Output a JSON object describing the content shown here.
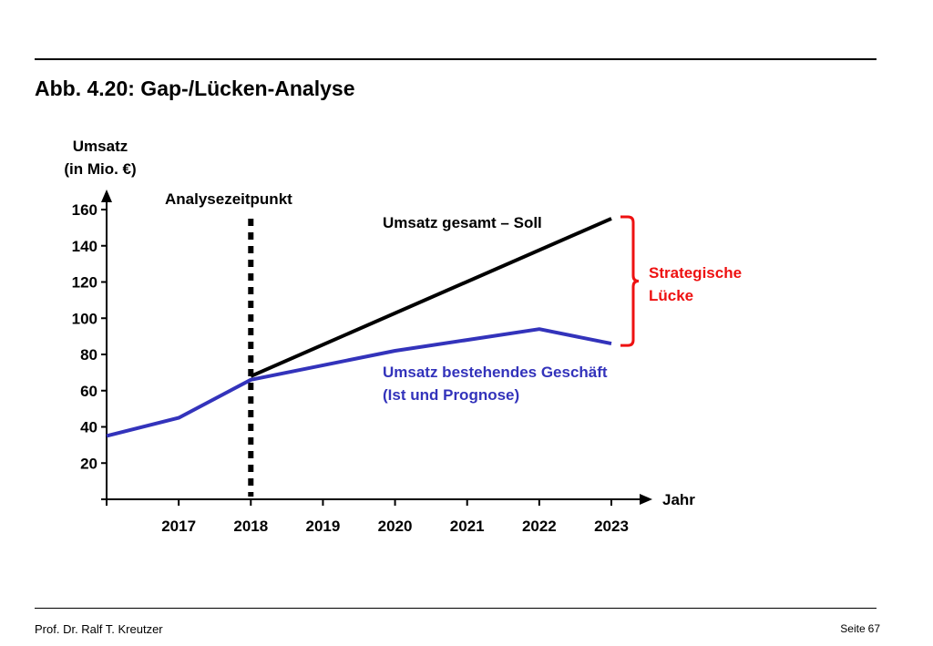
{
  "slide": {
    "title": "Abb. 4.20: Gap-/Lücken-Analyse",
    "footer_author": "Prof. Dr. Ralf T. Kreutzer",
    "footer_page_label": "Seite",
    "footer_page_number": "67"
  },
  "chart_data": {
    "type": "line",
    "ylabel_line1": "Umsatz",
    "ylabel_line2": "(in Mio. €)",
    "xlabel": "Jahr",
    "x_range": [
      2016,
      2023
    ],
    "ylim": [
      0,
      165
    ],
    "y_ticks": [
      20,
      40,
      60,
      80,
      100,
      120,
      140,
      160
    ],
    "x_ticks": [
      2017,
      2018,
      2019,
      2020,
      2021,
      2022,
      2023
    ],
    "grid": false,
    "series": [
      {
        "name_line1": "Umsatz bestehendes Geschäft",
        "name_line2": "(Ist und Prognose)",
        "color": "#3333bb",
        "points": [
          [
            2016,
            35
          ],
          [
            2017,
            45
          ],
          [
            2018,
            66
          ],
          [
            2019,
            74
          ],
          [
            2020,
            82
          ],
          [
            2021,
            88
          ],
          [
            2022,
            94
          ],
          [
            2023,
            86
          ]
        ]
      },
      {
        "name_line1": "Umsatz gesamt – Soll",
        "color": "#000000",
        "points": [
          [
            2018,
            68
          ],
          [
            2023,
            155
          ]
        ]
      }
    ],
    "annotations": {
      "analysis_point_label": "Analysezeitpunkt",
      "analysis_year": 2018,
      "gap_label_line1": "Strategische",
      "gap_label_line2": "Lücke",
      "gap_color": "#ee1111",
      "gap_year": 2023,
      "gap_from": 86,
      "gap_to": 155
    }
  }
}
